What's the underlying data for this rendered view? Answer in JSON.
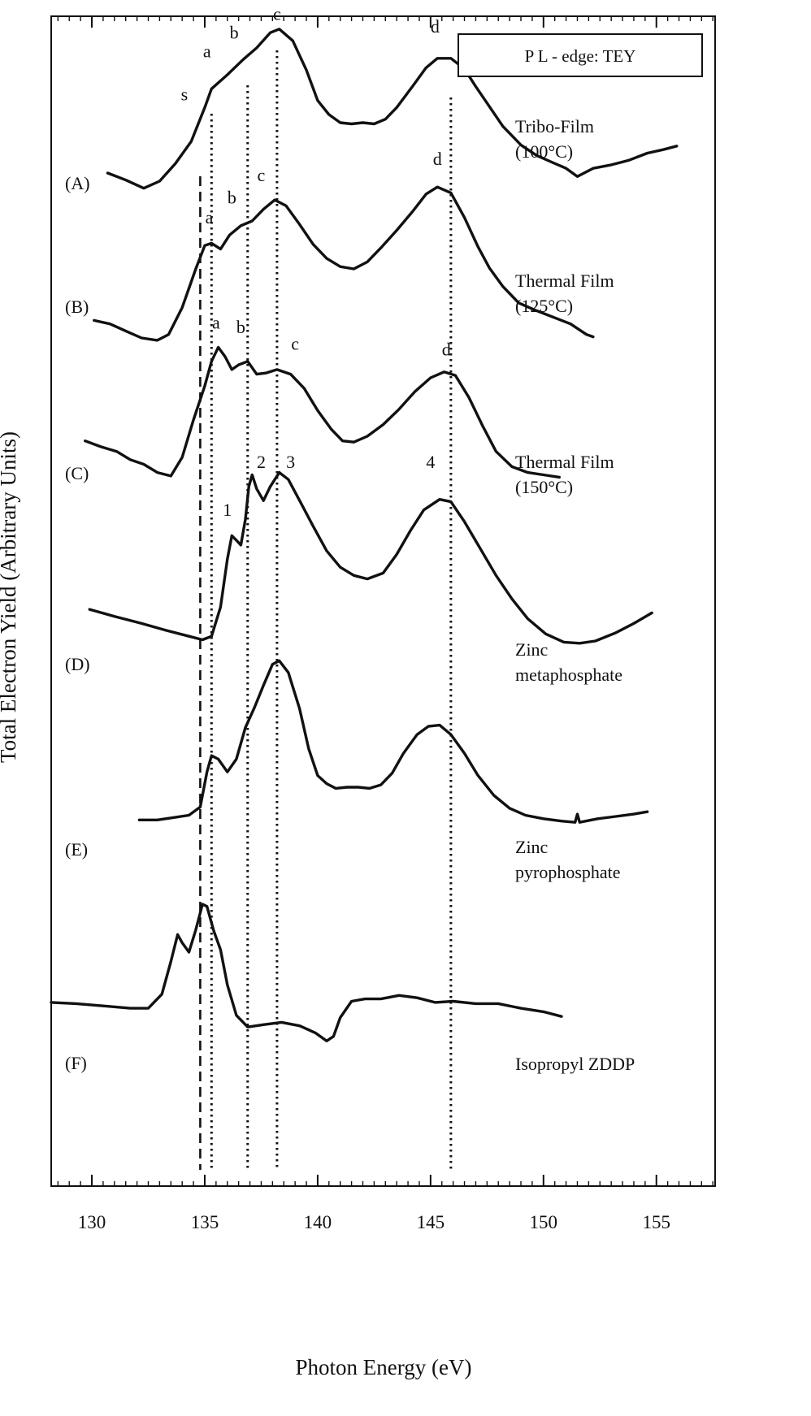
{
  "chart_data": {
    "type": "line",
    "xlabel": "Photon Energy (eV)",
    "ylabel": "Total Electron Yield (Arbitrary Units)",
    "legend_box": "P L - edge:  TEY",
    "xlim": [
      128.2,
      157.6
    ],
    "x_ticks": [
      130,
      135,
      140,
      145,
      150,
      155
    ],
    "stack_ylim": [
      0,
      100
    ],
    "ref_lines": [
      {
        "x": 134.8,
        "style": "dashed"
      },
      {
        "x": 135.3,
        "style": "dotted"
      },
      {
        "x": 136.9,
        "style": "dotted"
      },
      {
        "x": 138.2,
        "style": "dotted"
      },
      {
        "x": 145.9,
        "style": "dotted"
      }
    ],
    "series": [
      {
        "panel": "(A)",
        "name_lines": [
          "Tribo-Film",
          "(100°C)"
        ],
        "points": [
          [
            130.7,
            86.6
          ],
          [
            131.5,
            86.0
          ],
          [
            132.3,
            85.3
          ],
          [
            133.0,
            85.9
          ],
          [
            133.7,
            87.4
          ],
          [
            134.4,
            89.3
          ],
          [
            135.0,
            92.2
          ],
          [
            135.3,
            93.8
          ],
          [
            136.0,
            95.0
          ],
          [
            136.7,
            96.3
          ],
          [
            137.3,
            97.3
          ],
          [
            137.9,
            98.6
          ],
          [
            138.3,
            98.9
          ],
          [
            138.9,
            97.9
          ],
          [
            139.5,
            95.4
          ],
          [
            140.0,
            92.8
          ],
          [
            140.5,
            91.6
          ],
          [
            141.0,
            90.9
          ],
          [
            141.5,
            90.8
          ],
          [
            142.0,
            90.9
          ],
          [
            142.5,
            90.8
          ],
          [
            143.0,
            91.2
          ],
          [
            143.5,
            92.2
          ],
          [
            144.2,
            94.0
          ],
          [
            144.8,
            95.6
          ],
          [
            145.3,
            96.4
          ],
          [
            145.9,
            96.4
          ],
          [
            146.5,
            95.5
          ],
          [
            147.0,
            94.0
          ],
          [
            147.6,
            92.3
          ],
          [
            148.2,
            90.6
          ],
          [
            149.0,
            89.0
          ],
          [
            149.7,
            88.1
          ],
          [
            150.4,
            87.5
          ],
          [
            151.0,
            87.0
          ],
          [
            151.5,
            86.3
          ],
          [
            152.2,
            87.0
          ],
          [
            153.0,
            87.3
          ],
          [
            153.8,
            87.7
          ],
          [
            154.6,
            88.3
          ],
          [
            155.3,
            88.6
          ],
          [
            155.9,
            88.9
          ]
        ],
        "labels": [
          {
            "text": "s",
            "x": 134.1,
            "y": 92.8
          },
          {
            "text": "a",
            "x": 135.1,
            "y": 96.5
          },
          {
            "text": "b",
            "x": 136.3,
            "y": 98.1
          },
          {
            "text": "c",
            "x": 138.2,
            "y": 99.7
          },
          {
            "text": "d",
            "x": 145.2,
            "y": 98.6
          }
        ]
      },
      {
        "panel": "(B)",
        "name_lines": [
          "Thermal Film",
          "(125°C)"
        ],
        "points": [
          [
            130.1,
            74.0
          ],
          [
            130.8,
            73.7
          ],
          [
            131.5,
            73.1
          ],
          [
            132.2,
            72.5
          ],
          [
            132.9,
            72.3
          ],
          [
            133.4,
            72.8
          ],
          [
            134.0,
            75.1
          ],
          [
            134.6,
            78.4
          ],
          [
            135.0,
            80.4
          ],
          [
            135.3,
            80.6
          ],
          [
            135.7,
            80.1
          ],
          [
            136.1,
            81.3
          ],
          [
            136.6,
            82.1
          ],
          [
            137.1,
            82.5
          ],
          [
            137.6,
            83.5
          ],
          [
            138.1,
            84.3
          ],
          [
            138.6,
            83.8
          ],
          [
            139.2,
            82.2
          ],
          [
            139.8,
            80.5
          ],
          [
            140.4,
            79.3
          ],
          [
            141.0,
            78.6
          ],
          [
            141.6,
            78.4
          ],
          [
            142.2,
            79.0
          ],
          [
            142.8,
            80.2
          ],
          [
            143.5,
            81.7
          ],
          [
            144.2,
            83.3
          ],
          [
            144.8,
            84.8
          ],
          [
            145.3,
            85.4
          ],
          [
            145.9,
            84.9
          ],
          [
            146.5,
            82.8
          ],
          [
            147.1,
            80.3
          ],
          [
            147.6,
            78.5
          ],
          [
            148.2,
            76.9
          ],
          [
            148.9,
            75.5
          ],
          [
            149.6,
            74.9
          ],
          [
            150.4,
            74.3
          ],
          [
            151.2,
            73.7
          ],
          [
            151.9,
            72.8
          ],
          [
            152.2,
            72.6
          ]
        ],
        "labels": [
          {
            "text": "a",
            "x": 135.2,
            "y": 82.3
          },
          {
            "text": "b",
            "x": 136.2,
            "y": 84.0
          },
          {
            "text": "c",
            "x": 137.5,
            "y": 85.9
          },
          {
            "text": "d",
            "x": 145.3,
            "y": 87.3
          }
        ]
      },
      {
        "panel": "(C)",
        "name_lines": [
          "Thermal Film",
          "(150°C)"
        ],
        "points": [
          [
            129.7,
            63.7
          ],
          [
            130.4,
            63.2
          ],
          [
            131.1,
            62.8
          ],
          [
            131.7,
            62.1
          ],
          [
            132.3,
            61.7
          ],
          [
            132.9,
            61.0
          ],
          [
            133.5,
            60.7
          ],
          [
            134.0,
            62.3
          ],
          [
            134.5,
            65.5
          ],
          [
            135.0,
            68.4
          ],
          [
            135.3,
            70.5
          ],
          [
            135.6,
            71.7
          ],
          [
            135.9,
            70.9
          ],
          [
            136.2,
            69.8
          ],
          [
            136.5,
            70.2
          ],
          [
            136.9,
            70.5
          ],
          [
            137.3,
            69.4
          ],
          [
            137.7,
            69.5
          ],
          [
            138.2,
            69.8
          ],
          [
            138.8,
            69.4
          ],
          [
            139.4,
            68.2
          ],
          [
            140.0,
            66.3
          ],
          [
            140.6,
            64.7
          ],
          [
            141.1,
            63.7
          ],
          [
            141.6,
            63.6
          ],
          [
            142.2,
            64.1
          ],
          [
            142.9,
            65.1
          ],
          [
            143.6,
            66.4
          ],
          [
            144.3,
            67.9
          ],
          [
            145.0,
            69.1
          ],
          [
            145.6,
            69.6
          ],
          [
            146.1,
            69.3
          ],
          [
            146.7,
            67.4
          ],
          [
            147.3,
            65.0
          ],
          [
            147.9,
            62.8
          ],
          [
            148.6,
            61.5
          ],
          [
            149.3,
            61.0
          ],
          [
            150.0,
            60.8
          ],
          [
            150.7,
            60.6
          ]
        ],
        "labels": [
          {
            "text": "a",
            "x": 135.5,
            "y": 73.3
          },
          {
            "text": "b",
            "x": 136.6,
            "y": 72.9
          },
          {
            "text": "c",
            "x": 139.0,
            "y": 71.5
          },
          {
            "text": "d",
            "x": 145.7,
            "y": 71.0
          }
        ]
      },
      {
        "panel": "(D)",
        "name_lines": [
          "Zinc",
          "metaphosphate"
        ],
        "points": [
          [
            129.9,
            49.3
          ],
          [
            131.0,
            48.7
          ],
          [
            132.2,
            48.1
          ],
          [
            133.3,
            47.5
          ],
          [
            134.3,
            47.0
          ],
          [
            134.9,
            46.7
          ],
          [
            135.3,
            47.0
          ],
          [
            135.7,
            49.5
          ],
          [
            136.0,
            53.6
          ],
          [
            136.2,
            55.6
          ],
          [
            136.4,
            55.2
          ],
          [
            136.6,
            54.8
          ],
          [
            136.8,
            57.0
          ],
          [
            136.95,
            59.8
          ],
          [
            137.1,
            60.8
          ],
          [
            137.3,
            59.6
          ],
          [
            137.6,
            58.6
          ],
          [
            137.9,
            59.8
          ],
          [
            138.3,
            61.0
          ],
          [
            138.7,
            60.4
          ],
          [
            139.2,
            58.6
          ],
          [
            139.8,
            56.4
          ],
          [
            140.4,
            54.3
          ],
          [
            141.0,
            52.9
          ],
          [
            141.6,
            52.2
          ],
          [
            142.2,
            51.9
          ],
          [
            142.9,
            52.4
          ],
          [
            143.5,
            54.0
          ],
          [
            144.1,
            56.0
          ],
          [
            144.7,
            57.8
          ],
          [
            145.4,
            58.7
          ],
          [
            145.9,
            58.5
          ],
          [
            146.5,
            56.8
          ],
          [
            147.2,
            54.5
          ],
          [
            147.9,
            52.2
          ],
          [
            148.6,
            50.2
          ],
          [
            149.3,
            48.5
          ],
          [
            150.1,
            47.2
          ],
          [
            150.9,
            46.5
          ],
          [
            151.6,
            46.4
          ],
          [
            152.3,
            46.6
          ],
          [
            153.2,
            47.3
          ],
          [
            154.0,
            48.1
          ],
          [
            154.8,
            49.0
          ]
        ],
        "labels": [
          {
            "text": "1",
            "x": 136.0,
            "y": 57.3
          },
          {
            "text": "2",
            "x": 137.5,
            "y": 61.4
          },
          {
            "text": "3",
            "x": 138.8,
            "y": 61.4
          },
          {
            "text": "4",
            "x": 145.0,
            "y": 61.4
          }
        ]
      },
      {
        "panel": "(E)",
        "name_lines": [
          "Zinc",
          "pyrophosphate"
        ],
        "points": [
          [
            132.1,
            31.3
          ],
          [
            132.9,
            31.3
          ],
          [
            133.6,
            31.5
          ],
          [
            134.3,
            31.7
          ],
          [
            134.8,
            32.4
          ],
          [
            135.1,
            35.4
          ],
          [
            135.3,
            36.8
          ],
          [
            135.6,
            36.5
          ],
          [
            136.0,
            35.4
          ],
          [
            136.4,
            36.5
          ],
          [
            136.8,
            39.2
          ],
          [
            137.2,
            40.9
          ],
          [
            137.6,
            42.8
          ],
          [
            138.0,
            44.6
          ],
          [
            138.3,
            44.9
          ],
          [
            138.7,
            43.9
          ],
          [
            139.2,
            40.8
          ],
          [
            139.6,
            37.4
          ],
          [
            140.0,
            35.1
          ],
          [
            140.4,
            34.4
          ],
          [
            140.8,
            34.0
          ],
          [
            141.3,
            34.1
          ],
          [
            141.8,
            34.1
          ],
          [
            142.3,
            34.0
          ],
          [
            142.8,
            34.3
          ],
          [
            143.3,
            35.3
          ],
          [
            143.8,
            37.0
          ],
          [
            144.4,
            38.6
          ],
          [
            144.9,
            39.3
          ],
          [
            145.4,
            39.4
          ],
          [
            145.9,
            38.6
          ],
          [
            146.5,
            37.0
          ],
          [
            147.1,
            35.1
          ],
          [
            147.8,
            33.4
          ],
          [
            148.5,
            32.3
          ],
          [
            149.2,
            31.7
          ],
          [
            150.0,
            31.4
          ],
          [
            150.8,
            31.2
          ],
          [
            151.4,
            31.1
          ],
          [
            151.5,
            31.8
          ],
          [
            151.6,
            31.1
          ],
          [
            152.4,
            31.4
          ],
          [
            153.2,
            31.6
          ],
          [
            154.0,
            31.8
          ],
          [
            154.6,
            32.0
          ]
        ],
        "labels": []
      },
      {
        "panel": "(F)",
        "name_lines": [
          "Isopropyl ZDDP"
        ],
        "points": [
          [
            128.2,
            15.7
          ],
          [
            129.3,
            15.6
          ],
          [
            130.5,
            15.4
          ],
          [
            131.7,
            15.2
          ],
          [
            132.5,
            15.2
          ],
          [
            133.1,
            16.4
          ],
          [
            133.5,
            19.2
          ],
          [
            133.8,
            21.5
          ],
          [
            134.0,
            20.8
          ],
          [
            134.3,
            20.0
          ],
          [
            134.6,
            21.9
          ],
          [
            134.9,
            24.1
          ],
          [
            135.1,
            23.9
          ],
          [
            135.4,
            21.8
          ],
          [
            135.7,
            20.2
          ],
          [
            136.0,
            17.2
          ],
          [
            136.4,
            14.6
          ],
          [
            136.9,
            13.6
          ],
          [
            137.6,
            13.8
          ],
          [
            138.4,
            14.0
          ],
          [
            139.2,
            13.7
          ],
          [
            139.9,
            13.1
          ],
          [
            140.4,
            12.4
          ],
          [
            140.7,
            12.8
          ],
          [
            141.0,
            14.4
          ],
          [
            141.5,
            15.8
          ],
          [
            142.1,
            16.0
          ],
          [
            142.8,
            16.0
          ],
          [
            143.6,
            16.3
          ],
          [
            144.4,
            16.1
          ],
          [
            145.2,
            15.7
          ],
          [
            146.0,
            15.8
          ],
          [
            147.0,
            15.6
          ],
          [
            148.0,
            15.6
          ],
          [
            149.0,
            15.2
          ],
          [
            150.0,
            14.9
          ],
          [
            150.8,
            14.5
          ]
        ],
        "labels": []
      }
    ]
  }
}
